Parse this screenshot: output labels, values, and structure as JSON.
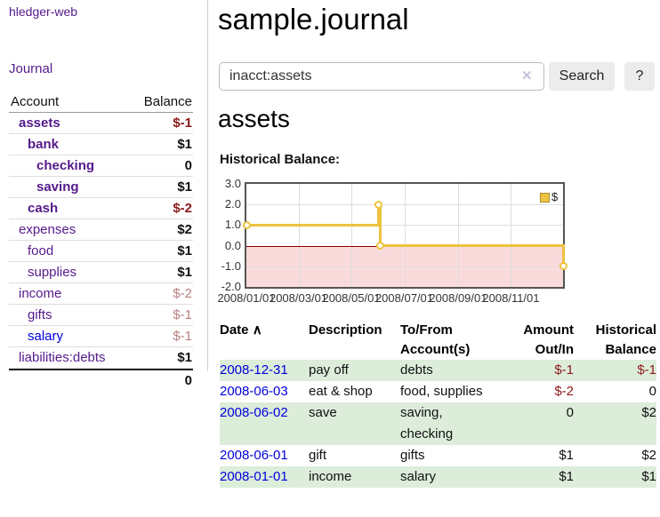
{
  "app": {
    "title": "hledger-web",
    "nav_journal": "Journal"
  },
  "sidebar": {
    "accounts_header": {
      "account": "Account",
      "balance": "Balance"
    },
    "accounts": [
      {
        "name": "assets",
        "indent": 1,
        "bold": true,
        "balance": "$-1",
        "negative": true,
        "muted": false,
        "blue_link": false
      },
      {
        "name": "bank",
        "indent": 2,
        "bold": true,
        "balance": "$1",
        "negative": false,
        "muted": false,
        "blue_link": false
      },
      {
        "name": "checking",
        "indent": 3,
        "bold": true,
        "balance": "0",
        "negative": false,
        "muted": false,
        "blue_link": false
      },
      {
        "name": "saving",
        "indent": 3,
        "bold": true,
        "balance": "$1",
        "negative": false,
        "muted": false,
        "blue_link": false
      },
      {
        "name": "cash",
        "indent": 2,
        "bold": true,
        "balance": "$-2",
        "negative": true,
        "muted": false,
        "blue_link": false
      },
      {
        "name": "expenses",
        "indent": 1,
        "bold": false,
        "balance": "$2",
        "negative": false,
        "muted": false,
        "blue_link": false
      },
      {
        "name": "food",
        "indent": 2,
        "bold": false,
        "balance": "$1",
        "negative": false,
        "muted": false,
        "blue_link": false
      },
      {
        "name": "supplies",
        "indent": 2,
        "bold": false,
        "balance": "$1",
        "negative": false,
        "muted": false,
        "blue_link": false
      },
      {
        "name": "income",
        "indent": 1,
        "bold": false,
        "balance": "$-2",
        "negative": true,
        "muted": true,
        "blue_link": false
      },
      {
        "name": "gifts",
        "indent": 2,
        "bold": false,
        "balance": "$-1",
        "negative": true,
        "muted": true,
        "blue_link": false
      },
      {
        "name": "salary",
        "indent": 2,
        "bold": false,
        "balance": "$-1",
        "negative": true,
        "muted": true,
        "blue_link": true
      },
      {
        "name": "liabilities:debts",
        "indent": 1,
        "bold": false,
        "balance": "$1",
        "negative": false,
        "muted": false,
        "blue_link": false
      }
    ],
    "total": "0"
  },
  "header": {
    "journal_title": "sample.journal"
  },
  "search": {
    "value": "inacct:assets",
    "clear_icon": "✕",
    "button": "Search",
    "help_button": "?"
  },
  "main": {
    "account_title": "assets",
    "chart_label": "Historical Balance:"
  },
  "chart_data": {
    "type": "line",
    "step": true,
    "title": "Historical Balance:",
    "xlabel": "",
    "ylabel": "",
    "ylim": [
      -2.0,
      3.0
    ],
    "yticks": [
      3.0,
      2.0,
      1.0,
      0.0,
      -1.0,
      -2.0
    ],
    "xticks": [
      "2008/01/01",
      "2008/03/01",
      "2008/05/01",
      "2008/07/01",
      "2008/09/01",
      "2008/11/01"
    ],
    "x_range": [
      "2008-01-01",
      "2008-12-31"
    ],
    "grid": true,
    "legend_position": "top-right",
    "series": [
      {
        "name": "$",
        "color": "#EDC240",
        "points": [
          [
            "2008-01-01",
            1
          ],
          [
            "2008-06-01",
            2
          ],
          [
            "2008-06-03",
            0
          ],
          [
            "2008-12-31",
            -1
          ]
        ]
      }
    ],
    "negative_region_color": "#FADBDB",
    "zero_line_color": "#8B0000"
  },
  "register": {
    "columns": {
      "date": "Date",
      "sort_indicator": "∧",
      "description": "Description",
      "tofrom": "To/From Account(s)",
      "amount": "Amount Out/In",
      "balance": "Historical Balance"
    },
    "rows": [
      {
        "date": "2008-12-31",
        "description": "pay off",
        "accounts": "debts",
        "amount": "$-1",
        "amount_negative": true,
        "balance": "$-1",
        "balance_negative": true
      },
      {
        "date": "2008-06-03",
        "description": "eat & shop",
        "accounts": "food, supplies",
        "amount": "$-2",
        "amount_negative": true,
        "balance": "0",
        "balance_negative": false
      },
      {
        "date": "2008-06-02",
        "description": "save",
        "accounts": "saving, checking",
        "amount": "0",
        "amount_negative": false,
        "balance": "$2",
        "balance_negative": false
      },
      {
        "date": "2008-06-01",
        "description": "gift",
        "accounts": "gifts",
        "amount": "$1",
        "amount_negative": false,
        "balance": "$2",
        "balance_negative": false
      },
      {
        "date": "2008-01-01",
        "description": "income",
        "accounts": "salary",
        "amount": "$1",
        "amount_negative": false,
        "balance": "$1",
        "balance_negative": false
      }
    ]
  },
  "colors": {
    "link_visited_purple": "#551A8B",
    "link_blue": "#0000DD",
    "negative_strong": "#8B1A1A",
    "negative_muted": "#B98080",
    "row_stripe_green": "#DCEDDA",
    "chart_line_gold": "#EDC240",
    "chart_negative_fill": "#FADBDB",
    "chart_zero_line": "#8B0000",
    "button_gray": "#ECECEC"
  }
}
